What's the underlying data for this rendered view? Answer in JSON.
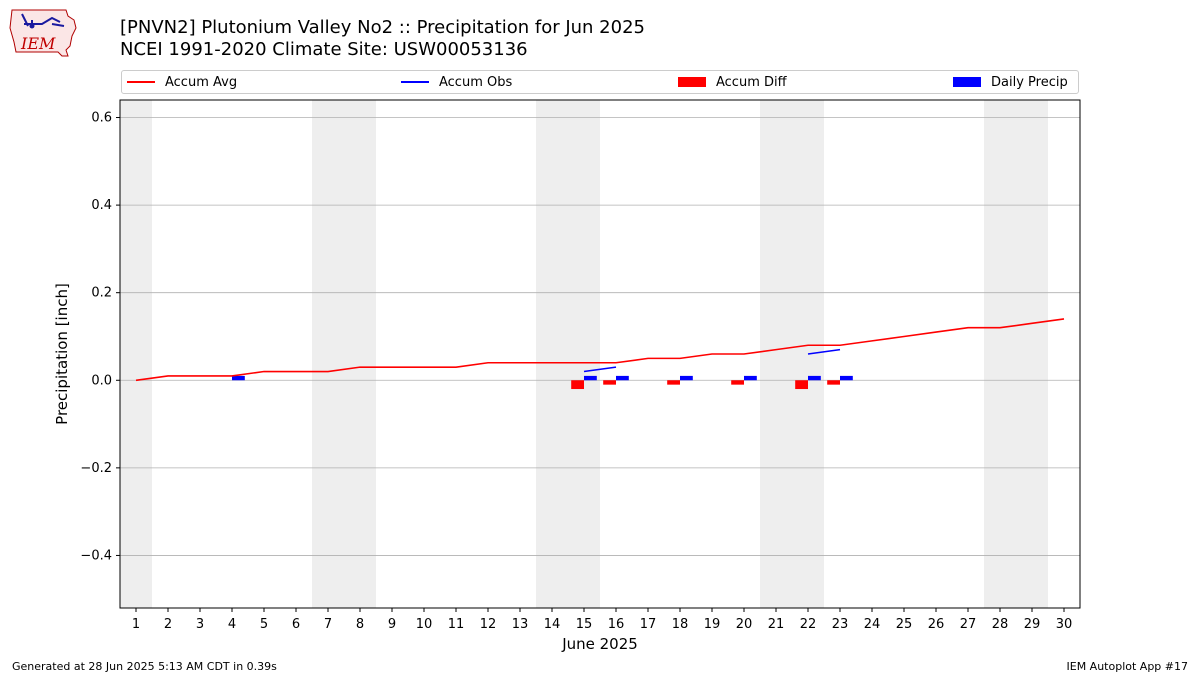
{
  "header": {
    "title_line1": "[PNVN2] Plutonium Valley No2 :: Precipitation for Jun 2025",
    "title_line2": "NCEI 1991-2020 Climate Site: USW00053136",
    "logo_text": "IEM"
  },
  "footer": {
    "generated": "Generated at 28 Jun 2025 5:13 AM CDT in 0.39s",
    "app": "IEM Autoplot App #17"
  },
  "legend": [
    {
      "label": "Accum Avg",
      "kind": "line",
      "color": "#ff0000"
    },
    {
      "label": "Accum Obs",
      "kind": "line",
      "color": "#0000ff"
    },
    {
      "label": "Accum Diff",
      "kind": "box",
      "color": "#ff0000"
    },
    {
      "label": "Daily Precip",
      "kind": "box",
      "color": "#0000ff"
    }
  ],
  "chart_data": {
    "type": "line",
    "title": "[PNVN2] Plutonium Valley No2 :: Precipitation for Jun 2025",
    "subtitle": "NCEI 1991-2020 Climate Site: USW00053136",
    "xlabel": "June 2025",
    "ylabel": "Precipitation [inch]",
    "xlim": [
      0.5,
      30.5
    ],
    "ylim": [
      -0.52,
      0.64
    ],
    "yticks": [
      -0.4,
      -0.2,
      0.0,
      0.2,
      0.4,
      0.6
    ],
    "ytick_labels": [
      "−0.4",
      "−0.2",
      "0.0",
      "0.2",
      "0.4",
      "0.6"
    ],
    "x": [
      1,
      2,
      3,
      4,
      5,
      6,
      7,
      8,
      9,
      10,
      11,
      12,
      13,
      14,
      15,
      16,
      17,
      18,
      19,
      20,
      21,
      22,
      23,
      24,
      25,
      26,
      27,
      28,
      29,
      30
    ],
    "xtick_labels": [
      "1",
      "2",
      "3",
      "4",
      "5",
      "6",
      "7",
      "8",
      "9",
      "10",
      "11",
      "12",
      "13",
      "14",
      "15",
      "16",
      "17",
      "18",
      "19",
      "20",
      "21",
      "22",
      "23",
      "24",
      "25",
      "26",
      "27",
      "28",
      "29",
      "30"
    ],
    "weekend_spans": [
      [
        0.5,
        1.5
      ],
      [
        6.5,
        8.5
      ],
      [
        13.5,
        15.5
      ],
      [
        20.5,
        22.5
      ],
      [
        27.5,
        29.5
      ]
    ],
    "grid": "horizontal",
    "series": [
      {
        "name": "Accum Avg",
        "type": "line",
        "color": "#ff0000",
        "x": [
          1,
          2,
          3,
          4,
          5,
          6,
          7,
          8,
          9,
          10,
          11,
          12,
          13,
          14,
          15,
          16,
          17,
          18,
          19,
          20,
          21,
          22,
          23,
          24,
          25,
          26,
          27,
          28,
          29,
          30
        ],
        "values": [
          0.0,
          0.01,
          0.01,
          0.01,
          0.02,
          0.02,
          0.02,
          0.03,
          0.03,
          0.03,
          0.03,
          0.04,
          0.04,
          0.04,
          0.04,
          0.04,
          0.05,
          0.05,
          0.06,
          0.06,
          0.07,
          0.08,
          0.08,
          0.09,
          0.1,
          0.11,
          0.12,
          0.12,
          0.13,
          0.14
        ]
      },
      {
        "name": "Accum Obs",
        "type": "line",
        "color": "#0000ff",
        "segments": [
          {
            "x": [
              15,
              16
            ],
            "values": [
              0.02,
              0.03
            ]
          },
          {
            "x": [
              22,
              23
            ],
            "values": [
              0.06,
              0.07
            ]
          }
        ]
      },
      {
        "name": "Accum Diff",
        "type": "bar",
        "color": "#ff0000",
        "x": [
          15,
          16,
          18,
          20,
          22,
          23
        ],
        "values": [
          -0.02,
          -0.01,
          -0.01,
          -0.01,
          -0.02,
          -0.01
        ]
      },
      {
        "name": "Daily Precip",
        "type": "bar",
        "color": "#0000ff",
        "x": [
          4,
          15,
          16,
          18,
          20,
          22,
          23
        ],
        "values": [
          0.01,
          0.01,
          0.01,
          0.01,
          0.01,
          0.01,
          0.01
        ]
      }
    ]
  }
}
